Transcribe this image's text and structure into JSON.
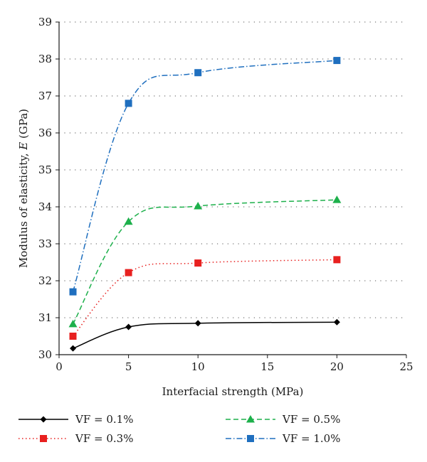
{
  "chart_data": {
    "type": "line",
    "xlabel": "Interfacial strength (MPa)",
    "ylabel_prefix": "Modulus of elasticity, ",
    "ylabel_symbol": "E",
    "ylabel_suffix": " (GPa)",
    "xlim": [
      0,
      25
    ],
    "ylim": [
      30,
      39
    ],
    "xticks": [
      "0",
      "5",
      "10",
      "15",
      "20",
      "25"
    ],
    "yticks": [
      "30",
      "31",
      "32",
      "33",
      "34",
      "35",
      "36",
      "37",
      "38",
      "39"
    ],
    "grid": "horizontal-dotted",
    "legend_position": "bottom",
    "x": [
      1,
      5,
      10,
      20
    ],
    "series": [
      {
        "name": "VF = 0.1%",
        "values": [
          30.17,
          30.75,
          30.85,
          30.88
        ],
        "color": "#000000",
        "marker": "diamond",
        "dash": "solid"
      },
      {
        "name": "VF = 0.3%",
        "values": [
          30.5,
          32.22,
          32.48,
          32.57
        ],
        "color": "#e8201f",
        "marker": "square",
        "dash": "dotted"
      },
      {
        "name": "VF = 0.5%",
        "values": [
          30.83,
          33.6,
          34.02,
          34.19
        ],
        "color": "#1db04b",
        "marker": "triangle",
        "dash": "dashed"
      },
      {
        "name": "VF = 1.0%",
        "values": [
          31.7,
          36.8,
          37.63,
          37.96
        ],
        "color": "#1f6fbf",
        "marker": "square",
        "dash": "dashdot"
      }
    ]
  }
}
